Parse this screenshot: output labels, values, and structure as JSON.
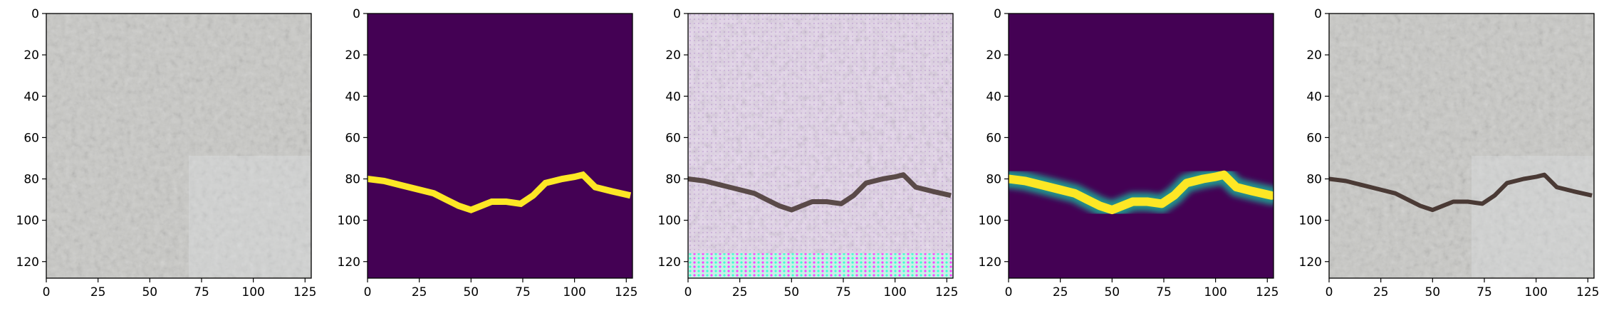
{
  "panels": [
    {
      "kind": "concrete-texture"
    },
    {
      "kind": "binary-mask"
    },
    {
      "kind": "generated-crack-image"
    },
    {
      "kind": "predicted-mask"
    },
    {
      "kind": "cracked-concrete-image"
    }
  ],
  "axes": {
    "xlim": [
      0,
      128
    ],
    "ylim": [
      128,
      0
    ],
    "xticks": [
      0,
      25,
      50,
      75,
      100,
      125
    ],
    "yticks": [
      0,
      20,
      40,
      60,
      80,
      100,
      120
    ]
  },
  "crack_path": [
    [
      0,
      80
    ],
    [
      8,
      81
    ],
    [
      16,
      83
    ],
    [
      24,
      85
    ],
    [
      32,
      87
    ],
    [
      38,
      90
    ],
    [
      44,
      93
    ],
    [
      50,
      95
    ],
    [
      55,
      93
    ],
    [
      60,
      91
    ],
    [
      67,
      91
    ],
    [
      74,
      92
    ],
    [
      80,
      88
    ],
    [
      86,
      82
    ],
    [
      94,
      80
    ],
    [
      100,
      79
    ],
    [
      104,
      78
    ],
    [
      110,
      84
    ],
    [
      118,
      86
    ],
    [
      127,
      88
    ]
  ],
  "colors": {
    "viridis_low": "#440154",
    "viridis_high": "#fde725",
    "viridis_mid": "#21918c",
    "concrete": "#c9c9c6",
    "crack": "#4a3a35"
  }
}
